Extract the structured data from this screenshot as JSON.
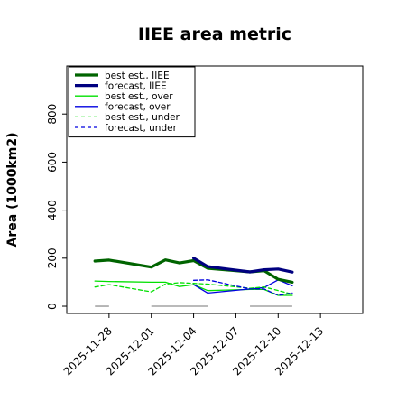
{
  "chart_data": {
    "type": "line",
    "title": "IIEE area metric",
    "xlabel": "",
    "ylabel": "Area (1000km2)",
    "ylim": [
      -30,
      1000
    ],
    "yticks": [
      0,
      200,
      400,
      600,
      800
    ],
    "xlim": [
      "2025-11-25",
      "2025-12-16"
    ],
    "xticks": [
      "2025-11-28",
      "2025-12-01",
      "2025-12-04",
      "2025-12-07",
      "2025-12-10",
      "2025-12-13"
    ],
    "highlighted_xtick": "2025-12-04",
    "highlight_color": "#2a8a2a",
    "grid": false,
    "legend_position": "top-left",
    "series": [
      {
        "name": "best est., IIEE",
        "color": "#006400",
        "style": "solid",
        "width": 3.2,
        "x": [
          "2025-11-27",
          "2025-11-28",
          "2025-12-01",
          "2025-12-02",
          "2025-12-03",
          "2025-12-04",
          "2025-12-05",
          "2025-12-08",
          "2025-12-09",
          "2025-12-10",
          "2025-12-11"
        ],
        "values": [
          188,
          192,
          163,
          193,
          180,
          190,
          158,
          143,
          148,
          112,
          100
        ]
      },
      {
        "name": "forecast, IIEE",
        "color": "#000080",
        "style": "solid",
        "width": 3.2,
        "x": [
          "2025-12-04",
          "2025-12-05",
          "2025-12-08",
          "2025-12-09",
          "2025-12-10",
          "2025-12-11"
        ],
        "values": [
          200,
          165,
          143,
          152,
          155,
          142
        ]
      },
      {
        "name": "best est., over",
        "color": "#00e000",
        "style": "solid",
        "width": 1.3,
        "x": [
          "2025-11-27",
          "2025-11-28",
          "2025-12-01",
          "2025-12-02",
          "2025-12-03",
          "2025-12-04",
          "2025-12-05",
          "2025-12-08",
          "2025-12-09",
          "2025-12-10",
          "2025-12-11"
        ],
        "values": [
          105,
          103,
          100,
          100,
          82,
          90,
          65,
          70,
          70,
          45,
          45
        ]
      },
      {
        "name": "forecast, over",
        "color": "#0000e0",
        "style": "solid",
        "width": 1.3,
        "x": [
          "2025-12-04",
          "2025-12-05",
          "2025-12-08",
          "2025-12-09",
          "2025-12-10",
          "2025-12-11"
        ],
        "values": [
          90,
          55,
          72,
          78,
          110,
          85
        ]
      },
      {
        "name": "best est., under",
        "color": "#00e000",
        "style": "dashed",
        "width": 1.3,
        "x": [
          "2025-11-27",
          "2025-11-28",
          "2025-12-01",
          "2025-12-02",
          "2025-12-03",
          "2025-12-04",
          "2025-12-05",
          "2025-12-08",
          "2025-12-09",
          "2025-12-10",
          "2025-12-11"
        ],
        "values": [
          80,
          90,
          60,
          92,
          98,
          95,
          92,
          75,
          80,
          65,
          50
        ]
      },
      {
        "name": "forecast, under",
        "color": "#0000e0",
        "style": "dashed",
        "width": 1.3,
        "x": [
          "2025-12-04",
          "2025-12-05",
          "2025-12-08",
          "2025-12-09",
          "2025-12-10",
          "2025-12-11"
        ],
        "values": [
          108,
          110,
          72,
          72,
          45,
          55
        ]
      }
    ],
    "baseline_segments": {
      "color": "#909090",
      "value": 0,
      "ranges": [
        [
          "2025-11-27",
          "2025-11-28"
        ],
        [
          "2025-12-01",
          "2025-12-05"
        ],
        [
          "2025-12-08",
          "2025-12-11"
        ]
      ]
    }
  }
}
